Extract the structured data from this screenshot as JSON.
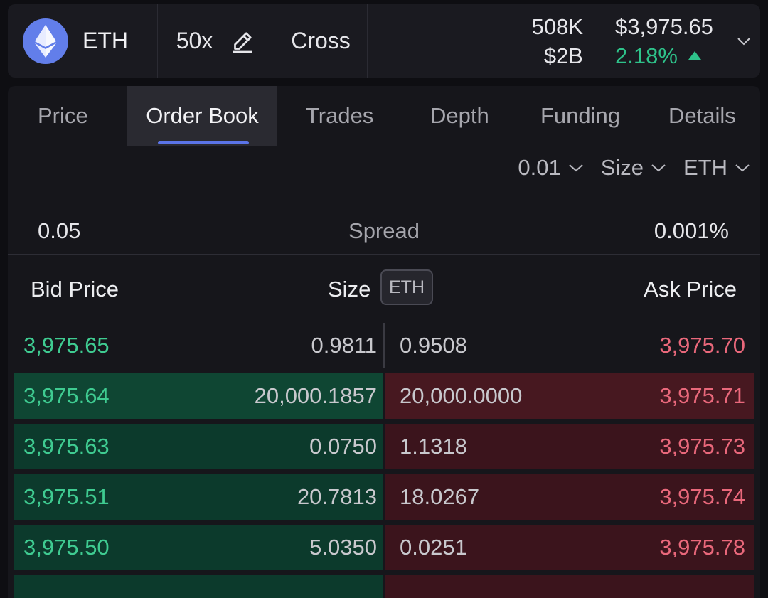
{
  "header": {
    "asset": "ETH",
    "leverage": "50x",
    "margin_mode": "Cross",
    "volume": "508K",
    "open_interest": "$2B",
    "price": "$3,975.65",
    "change": "2.18%",
    "change_color": "#2ec28a",
    "icons": [
      "ethereum-logo-icon",
      "pencil-icon",
      "triangle-up-icon",
      "chevron-down-icon"
    ]
  },
  "tabs": [
    {
      "label": "Price"
    },
    {
      "label": "Order Book",
      "active": true
    },
    {
      "label": "Trades"
    },
    {
      "label": "Depth"
    },
    {
      "label": "Funding"
    },
    {
      "label": "Details"
    }
  ],
  "controls": {
    "tick_size": "0.01",
    "display": "Size",
    "unit": "ETH"
  },
  "spread": {
    "value": "0.05",
    "label": "Spread",
    "percent": "0.001%"
  },
  "columns": {
    "bid_price": "Bid Price",
    "size": "Size",
    "size_unit": "ETH",
    "ask_price": "Ask Price"
  },
  "rows": [
    {
      "bid_price": "3,975.65",
      "bid_size": "0.9811",
      "ask_size": "0.9508",
      "ask_price": "3,975.70"
    },
    {
      "bid_price": "3,975.64",
      "bid_size": "20,000.1857",
      "ask_size": "20,000.0000",
      "ask_price": "3,975.71"
    },
    {
      "bid_price": "3,975.63",
      "bid_size": "0.0750",
      "ask_size": "1.1318",
      "ask_price": "3,975.73"
    },
    {
      "bid_price": "3,975.51",
      "bid_size": "20.7813",
      "ask_size": "18.0267",
      "ask_price": "3,975.74"
    },
    {
      "bid_price": "3,975.50",
      "bid_size": "5.0350",
      "ask_size": "0.0251",
      "ask_price": "3,975.78"
    }
  ],
  "colors": {
    "bid": "#3fcb91",
    "ask": "#e9687b",
    "accent": "#5b74e8"
  }
}
